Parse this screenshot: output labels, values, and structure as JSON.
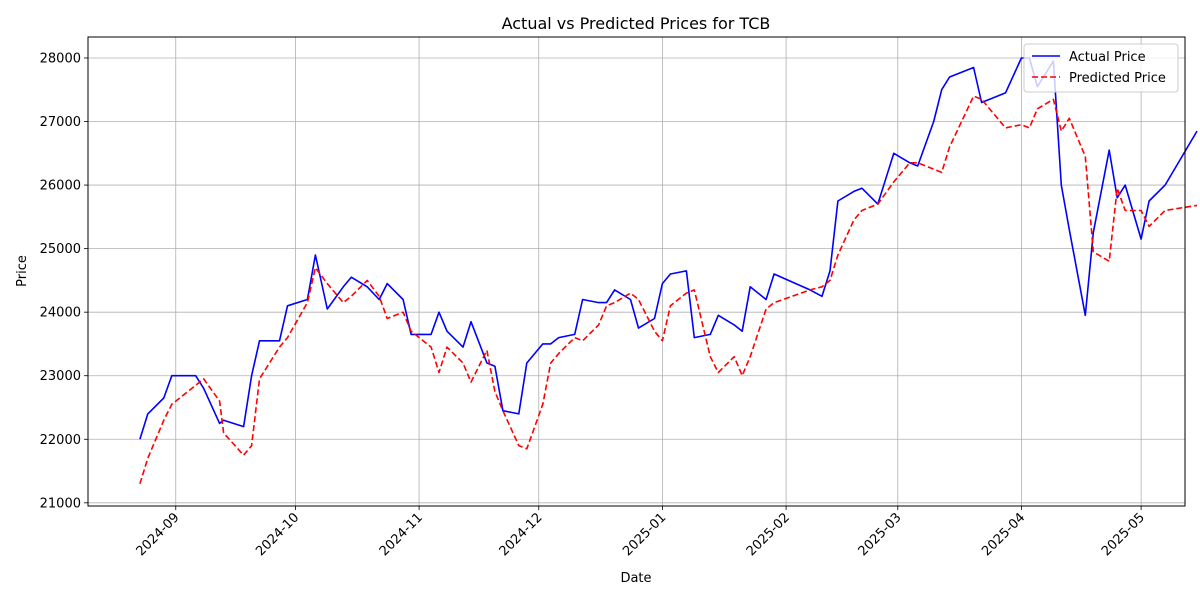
{
  "chart_data": {
    "type": "line",
    "title": "Actual vs Predicted Prices for TCB",
    "xlabel": "Date",
    "ylabel": "Price",
    "xlim": [
      "2024-08-10",
      "2025-05-12"
    ],
    "ylim": [
      20950,
      28330
    ],
    "grid": true,
    "legend_position": "top-right",
    "x_ticks": [
      "2024-09-01",
      "2024-10-01",
      "2024-11-01",
      "2024-12-01",
      "2025-01-01",
      "2025-02-01",
      "2025-03-01",
      "2025-04-01",
      "2025-05-01"
    ],
    "x_tick_labels": [
      "2024-09",
      "2024-10",
      "2024-11",
      "2024-12",
      "2025-01",
      "2025-02",
      "2025-03",
      "2025-04",
      "2025-05"
    ],
    "y_ticks": [
      21000,
      22000,
      23000,
      24000,
      25000,
      26000,
      27000,
      28000
    ],
    "series": [
      {
        "name": "Actual Price",
        "color": "#0000ff",
        "style": "solid",
        "points": [
          [
            "2024-08-23",
            22000
          ],
          [
            "2024-08-25",
            22400
          ],
          [
            "2024-08-29",
            22650
          ],
          [
            "2024-08-31",
            23000
          ],
          [
            "2024-09-06",
            23000
          ],
          [
            "2024-09-08",
            22800
          ],
          [
            "2024-09-12",
            22250
          ],
          [
            "2024-09-13",
            22300
          ],
          [
            "2024-09-18",
            22200
          ],
          [
            "2024-09-20",
            23000
          ],
          [
            "2024-09-22",
            23550
          ],
          [
            "2024-09-27",
            23550
          ],
          [
            "2024-09-29",
            24100
          ],
          [
            "2024-10-04",
            24200
          ],
          [
            "2024-10-06",
            24900
          ],
          [
            "2024-10-09",
            24050
          ],
          [
            "2024-10-13",
            24400
          ],
          [
            "2024-10-15",
            24550
          ],
          [
            "2024-10-19",
            24400
          ],
          [
            "2024-10-22",
            24200
          ],
          [
            "2024-10-24",
            24450
          ],
          [
            "2024-10-28",
            24200
          ],
          [
            "2024-10-30",
            23650
          ],
          [
            "2024-11-04",
            23650
          ],
          [
            "2024-11-06",
            24000
          ],
          [
            "2024-11-08",
            23700
          ],
          [
            "2024-11-12",
            23450
          ],
          [
            "2024-11-14",
            23850
          ],
          [
            "2024-11-18",
            23200
          ],
          [
            "2024-11-20",
            23150
          ],
          [
            "2024-11-22",
            22450
          ],
          [
            "2024-11-26",
            22400
          ],
          [
            "2024-11-28",
            23200
          ],
          [
            "2024-12-02",
            23500
          ],
          [
            "2024-12-04",
            23500
          ],
          [
            "2024-12-06",
            23600
          ],
          [
            "2024-12-10",
            23650
          ],
          [
            "2024-12-12",
            24200
          ],
          [
            "2024-12-16",
            24150
          ],
          [
            "2024-12-18",
            24150
          ],
          [
            "2024-12-20",
            24350
          ],
          [
            "2024-12-24",
            24200
          ],
          [
            "2024-12-26",
            23750
          ],
          [
            "2024-12-30",
            23900
          ],
          [
            "2025-01-01",
            24450
          ],
          [
            "2025-01-03",
            24600
          ],
          [
            "2025-01-07",
            24650
          ],
          [
            "2025-01-09",
            23600
          ],
          [
            "2025-01-13",
            23650
          ],
          [
            "2025-01-15",
            23950
          ],
          [
            "2025-01-19",
            23800
          ],
          [
            "2025-01-21",
            23700
          ],
          [
            "2025-01-23",
            24400
          ],
          [
            "2025-01-27",
            24200
          ],
          [
            "2025-01-29",
            24600
          ],
          [
            "2025-02-07",
            24350
          ],
          [
            "2025-02-10",
            24250
          ],
          [
            "2025-02-12",
            24650
          ],
          [
            "2025-02-14",
            25750
          ],
          [
            "2025-02-18",
            25900
          ],
          [
            "2025-02-20",
            25950
          ],
          [
            "2025-02-24",
            25700
          ],
          [
            "2025-02-28",
            26500
          ],
          [
            "2025-03-04",
            26350
          ],
          [
            "2025-03-06",
            26300
          ],
          [
            "2025-03-10",
            27000
          ],
          [
            "2025-03-12",
            27500
          ],
          [
            "2025-03-14",
            27700
          ],
          [
            "2025-03-20",
            27850
          ],
          [
            "2025-03-22",
            27300
          ],
          [
            "2025-03-28",
            27450
          ],
          [
            "2025-04-01",
            28000
          ],
          [
            "2025-04-03",
            28000
          ],
          [
            "2025-04-05",
            27550
          ],
          [
            "2025-04-09",
            27950
          ],
          [
            "2025-04-11",
            26000
          ],
          [
            "2025-04-13",
            25300
          ],
          [
            "2025-04-17",
            23950
          ],
          [
            "2025-04-19",
            25250
          ],
          [
            "2025-04-23",
            26550
          ],
          [
            "2025-04-25",
            25800
          ],
          [
            "2025-04-27",
            26000
          ],
          [
            "2025-05-01",
            25150
          ],
          [
            "2025-05-03",
            25750
          ],
          [
            "2025-05-07",
            26000
          ],
          [
            "2025-05-15",
            26850
          ]
        ]
      },
      {
        "name": "Predicted Price",
        "color": "#ff0000",
        "style": "dashed",
        "points": [
          [
            "2024-08-23",
            21300
          ],
          [
            "2024-08-25",
            21700
          ],
          [
            "2024-08-29",
            22300
          ],
          [
            "2024-08-31",
            22550
          ],
          [
            "2024-09-06",
            22850
          ],
          [
            "2024-09-08",
            22950
          ],
          [
            "2024-09-12",
            22600
          ],
          [
            "2024-09-13",
            22100
          ],
          [
            "2024-09-18",
            21750
          ],
          [
            "2024-09-20",
            21900
          ],
          [
            "2024-09-22",
            22950
          ],
          [
            "2024-09-27",
            23450
          ],
          [
            "2024-09-29",
            23600
          ],
          [
            "2024-10-04",
            24150
          ],
          [
            "2024-10-06",
            24700
          ],
          [
            "2024-10-09",
            24450
          ],
          [
            "2024-10-13",
            24150
          ],
          [
            "2024-10-15",
            24250
          ],
          [
            "2024-10-19",
            24500
          ],
          [
            "2024-10-22",
            24250
          ],
          [
            "2024-10-24",
            23900
          ],
          [
            "2024-10-28",
            24000
          ],
          [
            "2024-10-30",
            23700
          ],
          [
            "2024-11-04",
            23450
          ],
          [
            "2024-11-06",
            23050
          ],
          [
            "2024-11-08",
            23450
          ],
          [
            "2024-11-12",
            23200
          ],
          [
            "2024-11-14",
            22900
          ],
          [
            "2024-11-18",
            23400
          ],
          [
            "2024-11-20",
            22750
          ],
          [
            "2024-11-22",
            22450
          ],
          [
            "2024-11-26",
            21900
          ],
          [
            "2024-11-28",
            21850
          ],
          [
            "2024-12-02",
            22550
          ],
          [
            "2024-12-04",
            23200
          ],
          [
            "2024-12-06",
            23350
          ],
          [
            "2024-12-10",
            23600
          ],
          [
            "2024-12-12",
            23550
          ],
          [
            "2024-12-16",
            23800
          ],
          [
            "2024-12-18",
            24100
          ],
          [
            "2024-12-20",
            24150
          ],
          [
            "2024-12-24",
            24300
          ],
          [
            "2024-12-26",
            24200
          ],
          [
            "2024-12-30",
            23700
          ],
          [
            "2025-01-01",
            23550
          ],
          [
            "2025-01-03",
            24100
          ],
          [
            "2025-01-07",
            24300
          ],
          [
            "2025-01-09",
            24350
          ],
          [
            "2025-01-13",
            23300
          ],
          [
            "2025-01-15",
            23050
          ],
          [
            "2025-01-19",
            23300
          ],
          [
            "2025-01-21",
            23000
          ],
          [
            "2025-01-23",
            23300
          ],
          [
            "2025-01-27",
            24050
          ],
          [
            "2025-01-29",
            24150
          ],
          [
            "2025-02-07",
            24350
          ],
          [
            "2025-02-10",
            24400
          ],
          [
            "2025-02-12",
            24500
          ],
          [
            "2025-02-14",
            24900
          ],
          [
            "2025-02-18",
            25450
          ],
          [
            "2025-02-20",
            25600
          ],
          [
            "2025-02-24",
            25700
          ],
          [
            "2025-02-28",
            26050
          ],
          [
            "2025-03-04",
            26350
          ],
          [
            "2025-03-06",
            26350
          ],
          [
            "2025-03-10",
            26250
          ],
          [
            "2025-03-12",
            26200
          ],
          [
            "2025-03-14",
            26600
          ],
          [
            "2025-03-20",
            27400
          ],
          [
            "2025-03-22",
            27350
          ],
          [
            "2025-03-28",
            26900
          ],
          [
            "2025-04-01",
            26950
          ],
          [
            "2025-04-03",
            26900
          ],
          [
            "2025-04-05",
            27200
          ],
          [
            "2025-04-09",
            27350
          ],
          [
            "2025-04-11",
            26850
          ],
          [
            "2025-04-13",
            27050
          ],
          [
            "2025-04-17",
            26450
          ],
          [
            "2025-04-19",
            24950
          ],
          [
            "2025-04-23",
            24800
          ],
          [
            "2025-04-25",
            25950
          ],
          [
            "2025-04-27",
            25600
          ],
          [
            "2025-05-01",
            25600
          ],
          [
            "2025-05-03",
            25350
          ],
          [
            "2025-05-07",
            25600
          ],
          [
            "2025-05-15",
            25680
          ]
        ]
      }
    ]
  }
}
